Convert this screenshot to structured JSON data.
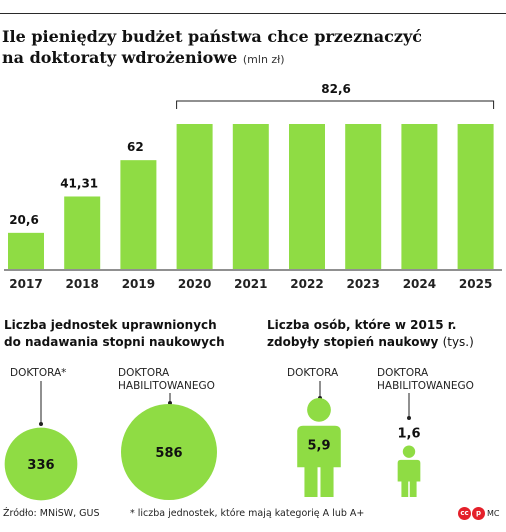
{
  "title": {
    "line1": "Ile pieniędzy budżet państwa chce przeznaczyć",
    "line2": "na doktoraty wdrożeniowe",
    "unit": "(mln zł)"
  },
  "colors": {
    "bar": "#8fdc44",
    "circle": "#8fdc44",
    "text": "#1a1a1a"
  },
  "chart_data": [
    {
      "type": "bar",
      "title": "Ile pieniędzy budżet państwa chce przeznaczyć na doktoraty wdrożeniowe",
      "ylabel": "(mln zł)",
      "categories": [
        "2017",
        "2018",
        "2019",
        "2020",
        "2021",
        "2022",
        "2023",
        "2024",
        "2025"
      ],
      "values": [
        20.6,
        41.31,
        62,
        82.6,
        82.6,
        82.6,
        82.6,
        82.6,
        82.6
      ],
      "labels": [
        "20,6",
        "41,31",
        "62",
        "",
        "",
        "",
        "",
        "",
        ""
      ],
      "bracket_label": "82,6",
      "ylim": [
        0,
        82.6
      ],
      "grid": false
    },
    {
      "type": "bubble",
      "title": "Liczba jednostek uprawnionych do nadawania stopni naukowych",
      "categories": [
        "DOKTORA*",
        "DOKTORA HABILITOWANEGO"
      ],
      "values": [
        336,
        586
      ],
      "labels": [
        "336",
        "586"
      ]
    },
    {
      "type": "pictogram",
      "title": "Liczba osób, które w 2015 r. zdobyły stopień naukowy",
      "unit": "(tys.)",
      "categories": [
        "DOKTORA",
        "DOKTORA HABILITOWANEGO"
      ],
      "values": [
        5.9,
        1.6
      ],
      "labels": [
        "5,9",
        "1,6"
      ]
    }
  ],
  "units_section": {
    "title_line1": "Liczba jednostek uprawnionych",
    "title_line2": "do nadawania stopni naukowych",
    "doktora_label": "DOKTORA*",
    "habil_label_line1": "DOKTORA",
    "habil_label_line2": "HABILITOWANEGO"
  },
  "people_section": {
    "title_line1": "Liczba osób, które w 2015 r.",
    "title_line2": "zdobyły stopień naukowy",
    "unit": "(tys.)",
    "doktora_label": "DOKTORA",
    "habil_label_line1": "DOKTORA",
    "habil_label_line2": "HABILITOWANEGO"
  },
  "footer": {
    "source": "Źródło: MNiSW, GUS",
    "footnote": "* liczba jednostek, które mają kategorię A lub A+",
    "credit": "MC"
  }
}
